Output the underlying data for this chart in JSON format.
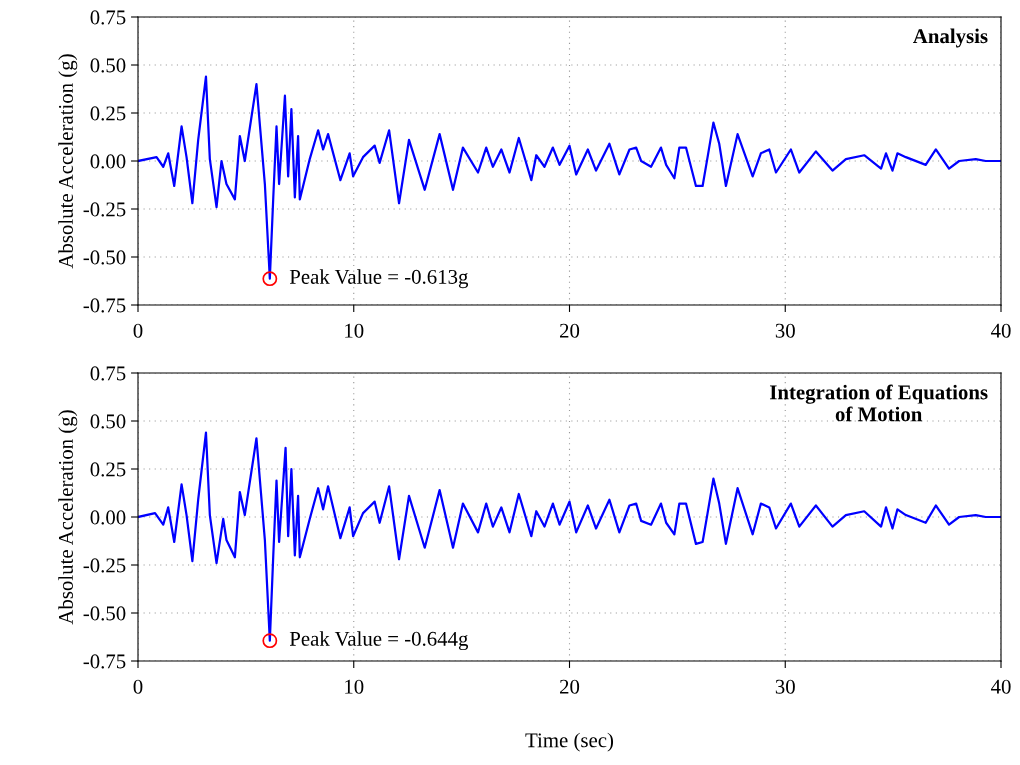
{
  "chart_data": [
    {
      "type": "line",
      "title": "Analysis",
      "ylabel": "Absolute Acceleration (g)",
      "xlim": [
        0,
        40
      ],
      "xticks": [
        0,
        10,
        20,
        30,
        40
      ],
      "ylim": [
        -0.75,
        0.75
      ],
      "yticks": [
        {
          "value": -0.75,
          "label": "-0.75"
        },
        {
          "value": -0.5,
          "label": "-0.50"
        },
        {
          "value": -0.25,
          "label": "-0.25"
        },
        {
          "value": 0,
          "label": "0.00"
        },
        {
          "value": 0.25,
          "label": "0.25"
        },
        {
          "value": 0.5,
          "label": "0.50"
        },
        {
          "value": 0.75,
          "label": "0.75"
        }
      ],
      "grid": true,
      "legend": false,
      "line_style": "solid",
      "annotations": [
        {
          "text": "Peak Value = -0.613g",
          "x": 6.11,
          "y": -0.613
        }
      ],
      "series": [
        {
          "color": "#0000ff",
          "marker": "none",
          "x": [
            0,
            0.86,
            1.17,
            1.4,
            1.68,
            2.02,
            2.25,
            2.52,
            2.79,
            3.15,
            3.33,
            3.64,
            3.87,
            4.1,
            4.49,
            4.72,
            4.95,
            5.49,
            5.88,
            6.11,
            6.27,
            6.42,
            6.54,
            6.81,
            6.96,
            7.11,
            7.27,
            7.42,
            7.5,
            7.96,
            8.35,
            8.58,
            8.81,
            9.38,
            9.81,
            9.97,
            10.43,
            10.97,
            11.2,
            11.64,
            12.1,
            12.56,
            13.29,
            13.98,
            14.6,
            15.06,
            15.76,
            16.14,
            16.45,
            16.84,
            17.22,
            17.65,
            18.23,
            18.46,
            18.84,
            19.23,
            19.54,
            20.0,
            20.31,
            20.85,
            21.23,
            21.85,
            22.31,
            22.78,
            23.09,
            23.32,
            23.78,
            24.24,
            24.48,
            24.86,
            25.09,
            25.4,
            25.86,
            26.17,
            26.4,
            26.67,
            26.94,
            27.25,
            27.79,
            28.49,
            28.87,
            29.26,
            29.57,
            30.26,
            30.65,
            31.42,
            32.19,
            32.81,
            33.66,
            34.44,
            34.67,
            34.97,
            35.2,
            35.59,
            36.51,
            36.98,
            37.59,
            38.06,
            38.83,
            39.29,
            40.0
          ],
          "values": [
            0,
            0.02,
            -0.03,
            0.04,
            -0.13,
            0.18,
            0.02,
            -0.22,
            0.11,
            0.44,
            0.01,
            -0.24,
            0.0,
            -0.12,
            -0.2,
            0.13,
            0.0,
            0.4,
            -0.12,
            -0.613,
            -0.19,
            0.18,
            -0.12,
            0.34,
            -0.08,
            0.27,
            -0.19,
            0.13,
            -0.2,
            0.01,
            0.16,
            0.06,
            0.14,
            -0.1,
            0.04,
            -0.08,
            0.02,
            0.08,
            -0.01,
            0.16,
            -0.22,
            0.11,
            -0.15,
            0.14,
            -0.15,
            0.07,
            -0.06,
            0.07,
            -0.03,
            0.06,
            -0.06,
            0.12,
            -0.1,
            0.03,
            -0.03,
            0.07,
            -0.02,
            0.08,
            -0.07,
            0.06,
            -0.05,
            0.09,
            -0.07,
            0.06,
            0.07,
            0.0,
            -0.03,
            0.07,
            -0.02,
            -0.09,
            0.07,
            0.07,
            -0.13,
            -0.13,
            0.02,
            0.2,
            0.09,
            -0.13,
            0.14,
            -0.08,
            0.04,
            0.06,
            -0.06,
            0.06,
            -0.06,
            0.05,
            -0.05,
            0.01,
            0.03,
            -0.04,
            0.04,
            -0.05,
            0.04,
            0.02,
            -0.02,
            0.06,
            -0.04,
            0.0,
            0.01,
            0.0,
            0
          ]
        },
        {
          "type": "scatter",
          "color": "#ff0000",
          "marker": "circle",
          "x": [
            6.11
          ],
          "values": [
            -0.613
          ]
        }
      ]
    },
    {
      "type": "line",
      "title": "Integration of Equations\nof Motion",
      "ylabel": "Absolute Acceleration (g)",
      "xlabel": "Time (sec)",
      "xlim": [
        0,
        40
      ],
      "xticks": [
        0,
        10,
        20,
        30,
        40
      ],
      "ylim": [
        -0.75,
        0.75
      ],
      "yticks": [
        {
          "value": -0.75,
          "label": "-0.75"
        },
        {
          "value": -0.5,
          "label": "-0.50"
        },
        {
          "value": -0.25,
          "label": "-0.25"
        },
        {
          "value": 0,
          "label": "0.00"
        },
        {
          "value": 0.25,
          "label": "0.25"
        },
        {
          "value": 0.5,
          "label": "0.50"
        },
        {
          "value": 0.75,
          "label": "0.75"
        }
      ],
      "grid": true,
      "legend": false,
      "line_style": "solid",
      "annotations": [
        {
          "text": "Peak Value = -0.644g",
          "x": 6.11,
          "y": -0.644
        }
      ],
      "series": [
        {
          "color": "#0000ff",
          "marker": "none",
          "x": [
            0,
            0.79,
            1.17,
            1.4,
            1.68,
            2.02,
            2.25,
            2.52,
            2.79,
            3.15,
            3.33,
            3.64,
            3.95,
            4.1,
            4.49,
            4.72,
            4.95,
            5.49,
            5.88,
            6.11,
            6.27,
            6.42,
            6.54,
            6.84,
            6.96,
            7.11,
            7.27,
            7.42,
            7.5,
            7.96,
            8.35,
            8.58,
            8.81,
            9.38,
            9.81,
            9.97,
            10.43,
            10.97,
            11.2,
            11.64,
            12.1,
            12.56,
            13.29,
            13.98,
            14.6,
            15.06,
            15.76,
            16.14,
            16.45,
            16.84,
            17.22,
            17.65,
            18.23,
            18.46,
            18.84,
            19.23,
            19.54,
            20.0,
            20.31,
            20.85,
            21.23,
            21.85,
            22.31,
            22.78,
            23.09,
            23.32,
            23.78,
            24.24,
            24.48,
            24.86,
            25.09,
            25.4,
            25.86,
            26.17,
            26.4,
            26.67,
            26.94,
            27.25,
            27.79,
            28.49,
            28.87,
            29.26,
            29.57,
            30.26,
            30.65,
            31.42,
            32.19,
            32.81,
            33.66,
            34.44,
            34.67,
            34.97,
            35.2,
            35.59,
            36.51,
            36.98,
            37.59,
            38.06,
            38.83,
            39.29,
            40.0
          ],
          "values": [
            0,
            0.02,
            -0.04,
            0.05,
            -0.13,
            0.17,
            0.01,
            -0.23,
            0.09,
            0.44,
            0.01,
            -0.24,
            -0.01,
            -0.12,
            -0.21,
            0.13,
            0.01,
            0.41,
            -0.12,
            -0.644,
            -0.2,
            0.19,
            -0.13,
            0.36,
            -0.1,
            0.25,
            -0.2,
            0.11,
            -0.21,
            -0.01,
            0.15,
            0.04,
            0.16,
            -0.11,
            0.05,
            -0.1,
            0.02,
            0.08,
            -0.03,
            0.16,
            -0.22,
            0.11,
            -0.16,
            0.14,
            -0.16,
            0.07,
            -0.08,
            0.07,
            -0.05,
            0.05,
            -0.08,
            0.12,
            -0.1,
            0.03,
            -0.05,
            0.07,
            -0.04,
            0.08,
            -0.08,
            0.06,
            -0.06,
            0.09,
            -0.08,
            0.06,
            0.07,
            -0.02,
            -0.04,
            0.07,
            -0.03,
            -0.09,
            0.07,
            0.07,
            -0.14,
            -0.13,
            0.02,
            0.2,
            0.07,
            -0.14,
            0.15,
            -0.09,
            0.07,
            0.05,
            -0.06,
            0.07,
            -0.05,
            0.06,
            -0.05,
            0.01,
            0.03,
            -0.05,
            0.05,
            -0.06,
            0.04,
            0.01,
            -0.03,
            0.06,
            -0.04,
            0.0,
            0.01,
            0,
            0
          ]
        },
        {
          "type": "scatter",
          "color": "#ff0000",
          "marker": "circle",
          "x": [
            6.11
          ],
          "values": [
            -0.644
          ]
        }
      ]
    }
  ]
}
